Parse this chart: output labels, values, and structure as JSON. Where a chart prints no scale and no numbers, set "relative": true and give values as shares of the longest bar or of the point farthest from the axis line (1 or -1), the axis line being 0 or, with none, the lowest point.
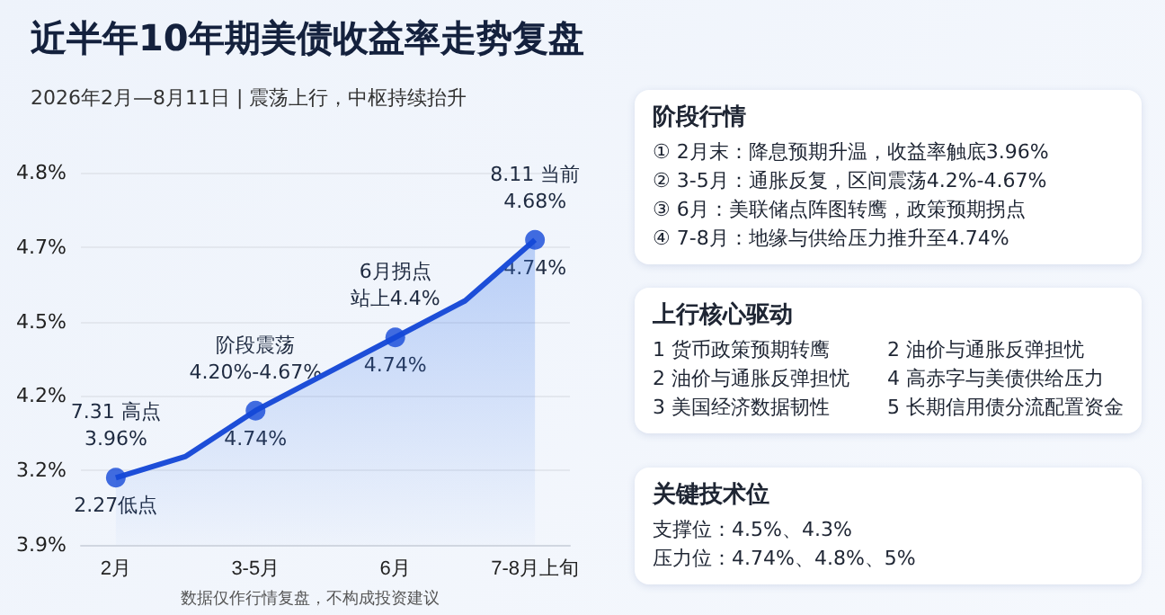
{
  "chart_data": [
    {
      "type": "area",
      "title": "近半年10年期美债收益率走势复盘",
      "subtitle": "2026年2月—8月11日 | 震荡上行，中枢持续抬升",
      "categories": [
        "2月",
        null,
        "3-5月",
        null,
        "6月",
        null,
        "7-8月上旬"
      ],
      "relative": true,
      "grid": "y",
      "series": [
        {
          "type": "area",
          "color": "#1d4ed8",
          "marker": "none",
          "values": [
            0.22,
            0.29,
            0.44,
            0.56,
            0.68,
            0.8,
            1
          ]
        },
        {
          "type": "scatter",
          "color": "#1448d8",
          "marker": "circle",
          "values": [
            0.22,
            null,
            0.44,
            null,
            0.68,
            null,
            1
          ]
        }
      ],
      "annotations": [
        {
          "text": "7.31 高点",
          "x": "2月",
          "y": 0.22
        },
        {
          "text": "3.96%",
          "x": "2月",
          "y": 0.22
        },
        {
          "text": "2.27低点",
          "x": "2月",
          "y": 0.22
        },
        {
          "text": "阶段震荡",
          "x": "3-5月",
          "y": 0.44
        },
        {
          "text": "4.20%-4.67%",
          "x": "3-5月",
          "y": 0.44
        },
        {
          "text": "4.74%",
          "x": "3-5月",
          "y": 0.44
        },
        {
          "text": "6月拐点",
          "x": "6月",
          "y": 0.68
        },
        {
          "text": "站上4.4%",
          "x": "6月",
          "y": 0.68
        },
        {
          "text": "4.74%",
          "x": "6月",
          "y": 0.68
        },
        {
          "text": "8.11 当前",
          "x": "7-8月上旬",
          "y": 1
        },
        {
          "text": "4.68%",
          "x": "7-8月上旬",
          "y": 1
        },
        {
          "text": "4.74%",
          "x": "7-8月上旬",
          "y": 1
        },
        "4.8%",
        "4.7%",
        "4.5%",
        "4.2%",
        "3.2%",
        "3.9%",
        "数据仅作行情复盘，不构成投资建议"
      ]
    },
    {
      "type": "other",
      "title": "阶段行情",
      "annotations": [
        "① 2月末：降息预期升温，收益率触底3.96%",
        "② 3-5月：通胀反复，区间震荡4.2%-4.67%",
        "③ 6月：美联储点阵图转鹰，政策预期拐点",
        "④ 7-8月：地缘与供给压力推升至4.74%"
      ]
    },
    {
      "type": "other",
      "title": "上行核心驱动",
      "annotations": [
        "1 货币政策预期转鹰",
        "2 油价与通胀反弹担忧",
        "2 油价与通胀反弹担忧",
        "4 高赤字与美债供给压力",
        "3 美国经济数据韧性",
        "5 长期信用债分流配置资金"
      ]
    },
    {
      "type": "other",
      "title": "关键技术位",
      "annotations": [
        "支撑位：4.5%、4.3%",
        "压力位：4.74%、4.8%、5%"
      ]
    }
  ]
}
